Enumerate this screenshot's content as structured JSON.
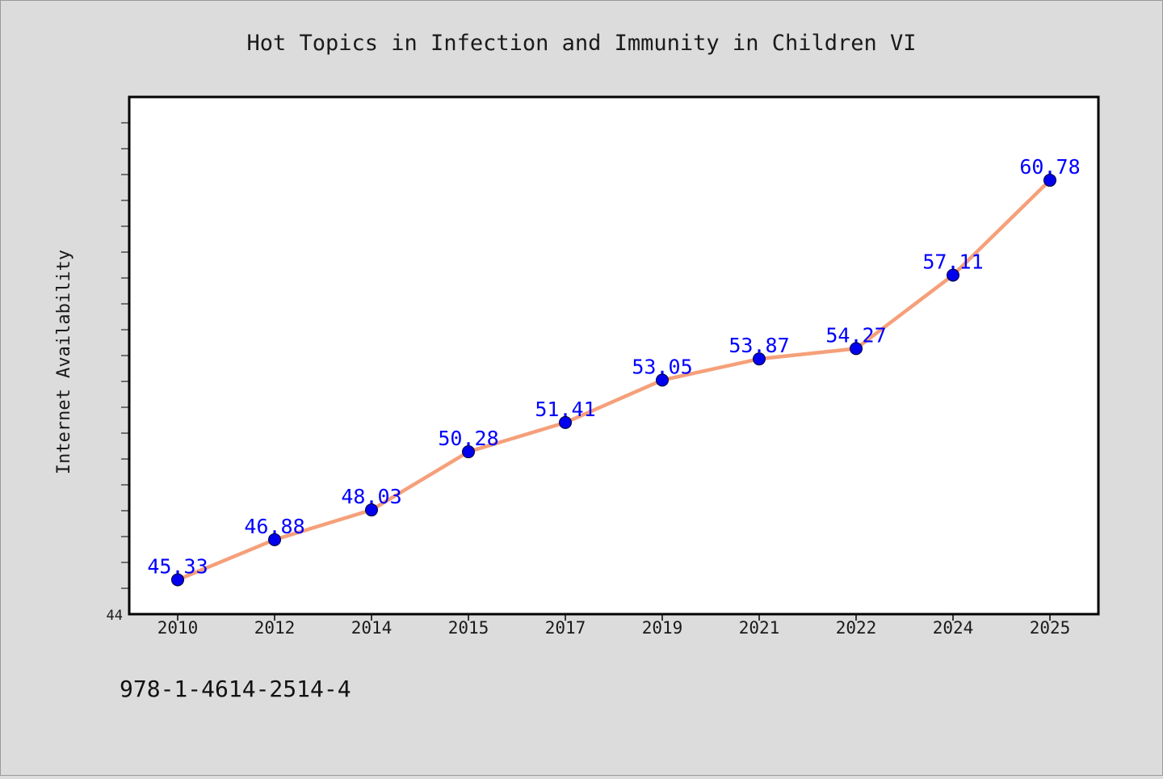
{
  "chart_data": {
    "type": "line",
    "title": "Hot Topics in Infection and Immunity in Children VI",
    "ylabel": "Internet Availability",
    "xlabel": "",
    "categories": [
      "2010",
      "2012",
      "2014",
      "2015",
      "2017",
      "2019",
      "2021",
      "2022",
      "2024",
      "2025"
    ],
    "series": [
      {
        "values": [
          45.33,
          46.88,
          48.03,
          50.28,
          51.41,
          53.05,
          53.87,
          54.27,
          57.11,
          60.78
        ]
      }
    ],
    "data_labels": [
      "45.33",
      "46.88",
      "48.03",
      "50.28",
      "51.41",
      "53.05",
      "53.87",
      "54.27",
      "57.11",
      "60.78"
    ],
    "ylim": [
      44,
      64
    ],
    "y_tick_labels": [
      "44"
    ],
    "grid": false,
    "legend": "none",
    "line_color": "#f5a07a",
    "marker_color": "#0000ee",
    "label_color": "#0000ff",
    "background_color": "#dcdcdc",
    "plot_background_color": "#ffffff"
  },
  "footer": {
    "isbn": "978-1-4614-2514-4"
  }
}
